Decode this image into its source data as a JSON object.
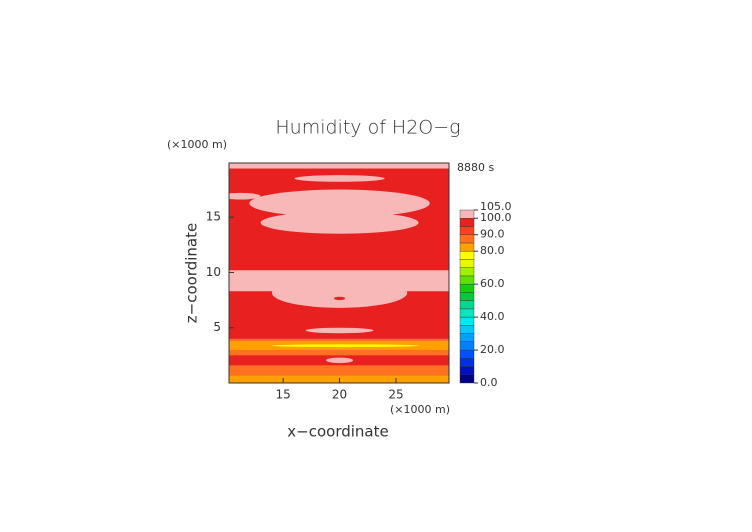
{
  "chart_data": {
    "type": "contour",
    "title": "Humidity of H2O−g",
    "x_label": "x−coordinate",
    "y_label": "z−coordinate",
    "x_unit": "(×1000 m)",
    "y_unit": "(×1000 m)",
    "time_label": "8880 s",
    "xlim": [
      10.2,
      29.7
    ],
    "ylim": [
      0,
      19.9
    ],
    "xticks": [
      15,
      20,
      25
    ],
    "yticks": [
      5,
      10,
      15
    ],
    "levels": [
      0,
      5,
      10,
      15,
      20,
      25,
      30,
      35,
      40,
      45,
      50,
      55,
      60,
      65,
      70,
      75,
      80,
      85,
      90,
      95,
      100,
      105
    ],
    "level_colors": [
      "#000080",
      "#0010c0",
      "#0030e0",
      "#0050ff",
      "#0080ff",
      "#00a0ff",
      "#00c8ff",
      "#00e8f0",
      "#00e8c0",
      "#00d890",
      "#00c840",
      "#10d010",
      "#60e000",
      "#a0f000",
      "#e8f800",
      "#ffff00",
      "#ffa000",
      "#ff7020",
      "#ff4020",
      "#e82020",
      "#f8b8b8"
    ],
    "colorbar_ticks": [
      {
        "value": 0,
        "label": "0.0"
      },
      {
        "value": 20,
        "label": "20.0"
      },
      {
        "value": 40,
        "label": "40.0"
      },
      {
        "value": 60,
        "label": "60.0"
      },
      {
        "value": 80,
        "label": "80.0"
      },
      {
        "value": 90,
        "label": "90.0"
      },
      {
        "value": 100,
        "label": "100.0"
      },
      {
        "value": 105,
        "label": "105.0"
      }
    ],
    "regions": [
      {
        "shape": "rect",
        "x": [
          10.2,
          29.7
        ],
        "y": [
          0,
          19.9
        ],
        "value": 97.5
      },
      {
        "shape": "rect",
        "x": [
          10.2,
          29.7
        ],
        "y": [
          0,
          0.7
        ],
        "value": 82.5
      },
      {
        "shape": "rect",
        "x": [
          10.2,
          29.7
        ],
        "y": [
          0.7,
          1.6
        ],
        "value": 87.5
      },
      {
        "shape": "rect",
        "x": [
          10.2,
          29.7
        ],
        "y": [
          2.5,
          4.0
        ],
        "value": 87.5
      },
      {
        "shape": "rect",
        "x": [
          10.2,
          29.7
        ],
        "y": [
          3.0,
          3.8
        ],
        "value": 82.5
      },
      {
        "shape": "ellipse",
        "x": [
          14,
          27
        ],
        "y": [
          3.25,
          3.5
        ],
        "value": 77.5
      },
      {
        "shape": "ellipse",
        "x": [
          17,
          23
        ],
        "y": [
          4.5,
          5.0
        ],
        "value": 102.5
      },
      {
        "shape": "ellipse",
        "x": [
          18.8,
          21.2
        ],
        "y": [
          1.8,
          2.3
        ],
        "value": 102.5
      },
      {
        "shape": "ellipse",
        "x": [
          14,
          26
        ],
        "y": [
          6.8,
          9.5
        ],
        "value": 102.5
      },
      {
        "shape": "rect",
        "x": [
          10.2,
          29.7
        ],
        "y": [
          8.3,
          10.2
        ],
        "value": 102.5
      },
      {
        "shape": "ellipse",
        "x": [
          19.5,
          20.5
        ],
        "y": [
          7.5,
          7.8
        ],
        "value": 97.5
      },
      {
        "shape": "ellipse",
        "x": [
          13,
          27
        ],
        "y": [
          13.5,
          15.5
        ],
        "value": 102.5
      },
      {
        "shape": "ellipse",
        "x": [
          12,
          28
        ],
        "y": [
          15.0,
          17.5
        ],
        "value": 102.5
      },
      {
        "shape": "ellipse",
        "x": [
          9.5,
          13
        ],
        "y": [
          16.6,
          17.2
        ],
        "value": 102.5
      },
      {
        "shape": "ellipse",
        "x": [
          16,
          24
        ],
        "y": [
          18.2,
          18.8
        ],
        "value": 102.5
      },
      {
        "shape": "rect",
        "x": [
          10.2,
          29.7
        ],
        "y": [
          19.4,
          19.9
        ],
        "value": 102.5
      }
    ]
  }
}
